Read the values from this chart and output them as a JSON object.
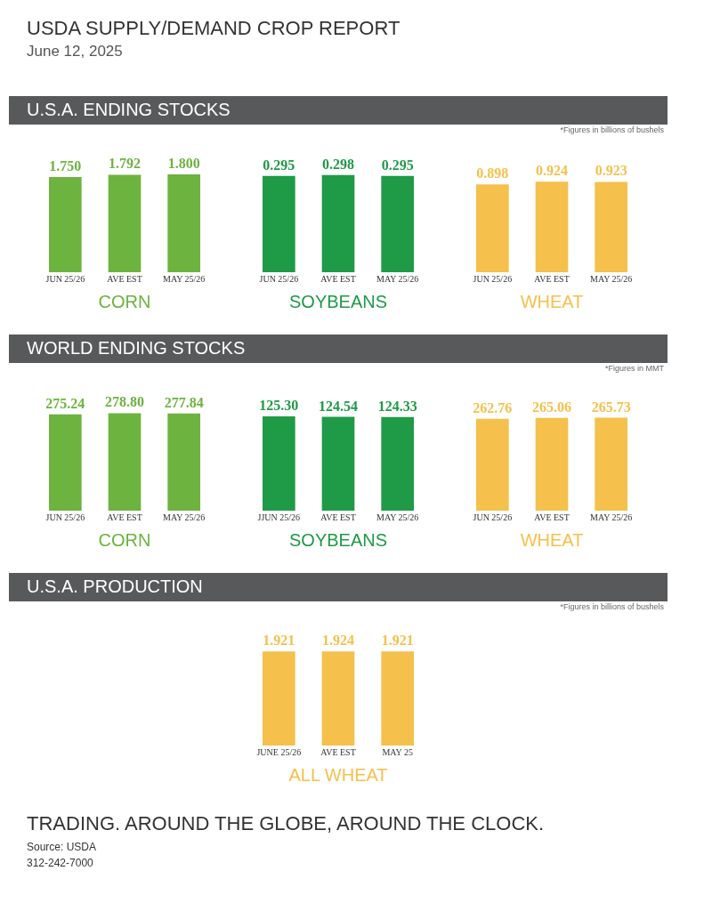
{
  "chart_data": [
    {
      "type": "other",
      "title": "USDA SUPPLY/DEMAND CROP REPORT",
      "subtitle": "June 12, 2025"
    },
    {
      "type": "bar",
      "title": "CORN",
      "annotations": [
        "U.S.A. ENDING STOCKS",
        "*Figures in billions of bushels"
      ],
      "categories": [
        "JUN 25/26",
        "AVE EST",
        "MAY 25/26"
      ],
      "values": [
        1.75,
        1.792,
        1.8
      ],
      "value_labels": [
        "1.750",
        "1.792",
        "1.800"
      ],
      "color": "#6db33f"
    },
    {
      "type": "bar",
      "title": "SOYBEANS",
      "categories": [
        "JUN 25/26",
        "AVE EST",
        "MAY 25/26"
      ],
      "values": [
        0.295,
        0.298,
        0.295
      ],
      "value_labels": [
        "0.295",
        "0.298",
        "0.295"
      ],
      "color": "#1f9a46"
    },
    {
      "type": "bar",
      "title": "WHEAT",
      "categories": [
        "JUN 25/26",
        "AVE EST",
        "MAY 25/26"
      ],
      "values": [
        0.898,
        0.924,
        0.923
      ],
      "value_labels": [
        "0.898",
        "0.924",
        "0.923"
      ],
      "color": "#f5c04c"
    },
    {
      "type": "bar",
      "title": "CORN",
      "annotations": [
        "WORLD ENDING STOCKS",
        "*Figures in MMT"
      ],
      "categories": [
        "JUN 25/26",
        "AVE EST",
        "MAY 25/26"
      ],
      "values": [
        275.24,
        278.8,
        277.84
      ],
      "value_labels": [
        "275.24",
        "278.80",
        "277.84"
      ],
      "color": "#6db33f"
    },
    {
      "type": "bar",
      "title": "SOYBEANS",
      "categories": [
        "JJUN 25/26",
        "AVE EST",
        "MAY 25/26"
      ],
      "values": [
        125.3,
        124.54,
        124.33
      ],
      "value_labels": [
        "125.30",
        "124.54",
        "124.33"
      ],
      "color": "#1f9a46"
    },
    {
      "type": "bar",
      "title": "WHEAT",
      "categories": [
        "JUN 25/26",
        "AVE EST",
        "MAY 25/26"
      ],
      "values": [
        262.76,
        265.06,
        265.73
      ],
      "value_labels": [
        "262.76",
        "265.06",
        "265.73"
      ],
      "color": "#f5c04c"
    },
    {
      "type": "bar",
      "title": "ALL WHEAT",
      "annotations": [
        "U.S.A. PRODUCTION",
        "*Figures in billions of bushels"
      ],
      "categories": [
        "JUNE 25/26",
        "AVE EST",
        "MAY 25"
      ],
      "values": [
        1.921,
        1.924,
        1.921
      ],
      "value_labels": [
        "1.921",
        "1.924",
        "1.921"
      ],
      "color": "#f5c04c"
    },
    {
      "type": "other",
      "title": "TRADING. AROUND THE GLOBE, AROUND THE CLOCK.",
      "annotations": [
        "Source: USDA",
        "312-242-7000"
      ]
    }
  ]
}
